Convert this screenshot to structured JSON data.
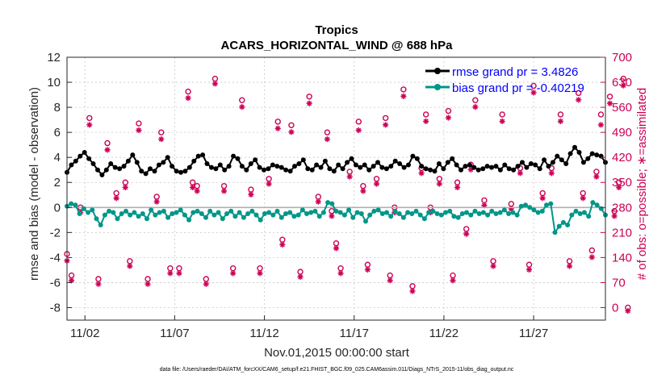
{
  "chart_data": {
    "type": "line",
    "title": "Tropics",
    "subtitle": "ACARS_HORIZONTAL_WIND @ 688 hPa",
    "xlabel": "Nov.01,2015 00:00:00 start",
    "ylabel": "rmse and bias (model - observation)",
    "y2label": "# of obs: o=possible; ∗=assimilated",
    "footnote": "data file: /Users/raeder/DAI/ATM_forcXX/CAM6_setup/f.e21.FHIST_BGC.f09_025.CAM6assim.011/Diags_NTrS_2015-11/obs_diag_output.nc",
    "xlim": [
      0,
      120
    ],
    "ylim": [
      -9,
      12
    ],
    "y2lim": [
      -35,
      700
    ],
    "yticks": [
      "12",
      "10",
      "8",
      "6",
      "4",
      "2",
      "0",
      "-2",
      "-4",
      "-6",
      "-8"
    ],
    "y2ticks": [
      "700",
      "630",
      "560",
      "490",
      "420",
      "350",
      "280",
      "210",
      "140",
      "70",
      "0"
    ],
    "xticks": [
      {
        "label": "11/02",
        "x": 4
      },
      {
        "label": "11/07",
        "x": 24
      },
      {
        "label": "11/12",
        "x": 44
      },
      {
        "label": "11/17",
        "x": 64
      },
      {
        "label": "11/22",
        "x": 84
      },
      {
        "label": "11/27",
        "x": 104
      }
    ],
    "legend_position": "top-right",
    "series": [
      {
        "name": "rmse grand pr = 3.4826",
        "color": "#000000",
        "values": [
          2.8,
          3.4,
          3.7,
          4.1,
          4.4,
          3.9,
          3.5,
          3.0,
          2.6,
          3.0,
          3.5,
          3.2,
          3.1,
          3.3,
          3.7,
          4.2,
          3.6,
          2.9,
          2.7,
          3.1,
          2.9,
          3.4,
          3.6,
          4.0,
          3.3,
          2.9,
          2.8,
          2.9,
          3.2,
          3.7,
          4.1,
          4.2,
          3.5,
          3.2,
          3.1,
          3.4,
          3.0,
          3.3,
          4.1,
          3.9,
          3.3,
          3.0,
          3.5,
          3.8,
          3.2,
          3.0,
          3.1,
          3.4,
          3.3,
          3.2,
          3.0,
          2.9,
          3.3,
          3.5,
          3.8,
          3.1,
          3.0,
          3.4,
          3.2,
          3.7,
          3.1,
          2.9,
          3.4,
          3.1,
          3.6,
          3.9,
          3.4,
          3.2,
          3.4,
          3.0,
          3.3,
          3.6,
          3.2,
          3.1,
          3.3,
          3.7,
          3.5,
          3.2,
          3.4,
          4.1,
          3.9,
          3.3,
          3.1,
          3.0,
          2.9,
          3.5,
          3.1,
          3.6,
          3.9,
          3.4,
          3.0,
          3.3,
          3.4,
          3.2,
          3.0,
          3.1,
          3.3,
          3.2,
          3.3,
          3.0,
          3.4,
          3.1,
          3.0,
          3.3,
          3.6,
          3.2,
          3.5,
          3.4,
          3.1,
          3.8,
          3.3,
          3.6,
          4.1,
          3.8,
          3.5,
          4.3,
          4.8,
          4.4,
          3.6,
          3.9,
          4.3,
          4.2,
          4.1,
          3.6
        ]
      },
      {
        "name": "bias grand pr = -0.40219",
        "color": "#009688",
        "values": [
          0.1,
          0.3,
          0.2,
          -0.5,
          -0.1,
          -0.4,
          -0.2,
          -0.9,
          -1.4,
          -0.6,
          -0.3,
          -0.4,
          -0.9,
          -0.5,
          -0.3,
          -0.6,
          -0.4,
          -0.7,
          -0.5,
          -0.9,
          -0.2,
          -0.6,
          -0.4,
          -0.3,
          -0.8,
          -0.5,
          -0.4,
          -0.2,
          -0.6,
          -1.0,
          -0.4,
          -0.3,
          -0.5,
          -0.8,
          -0.3,
          -0.6,
          -0.4,
          -0.9,
          -0.5,
          -0.3,
          -0.7,
          -0.4,
          -0.8,
          -0.5,
          -0.3,
          -0.6,
          -1.0,
          -0.5,
          -0.4,
          -0.6,
          -0.3,
          -0.8,
          -0.5,
          -0.4,
          -0.7,
          -0.6,
          -0.2,
          -0.5,
          -0.4,
          -0.3,
          -0.7,
          -0.4,
          0.4,
          0.3,
          -0.3,
          -0.4,
          -0.6,
          -0.2,
          -0.8,
          -0.4,
          -0.5,
          -1.1,
          -0.6,
          -0.3,
          -0.2,
          -0.5,
          -0.4,
          -0.7,
          -0.3,
          -0.5,
          -0.8,
          -0.4,
          -0.5,
          -0.3,
          -0.6,
          -0.9,
          -0.4,
          -0.3,
          -0.5,
          -0.6,
          -0.4,
          -0.3,
          -0.7,
          -0.8,
          -0.5,
          -0.4,
          -0.6,
          -0.3,
          -0.5,
          -0.4,
          -0.6,
          -0.3,
          -0.5,
          -0.4,
          -0.2,
          -0.5,
          -0.4,
          -0.6,
          0.1,
          0.2,
          0.0,
          -0.2,
          -0.4,
          -0.3,
          0.2,
          0.3,
          -2.0,
          -1.5,
          -1.2,
          -1.4,
          -0.6,
          -0.3,
          -0.5,
          -0.4,
          -0.7,
          0.4,
          0.2,
          -0.1,
          -0.6
        ]
      }
    ],
    "obs_counts": {
      "possible": [
        [
          0,
          150
        ],
        [
          1,
          90
        ],
        [
          3,
          280
        ],
        [
          5,
          530
        ],
        [
          7,
          80
        ],
        [
          9,
          460
        ],
        [
          11,
          320
        ],
        [
          13,
          350
        ],
        [
          14,
          130
        ],
        [
          16,
          515
        ],
        [
          18,
          80
        ],
        [
          20,
          310
        ],
        [
          21,
          490
        ],
        [
          23,
          110
        ],
        [
          25,
          110
        ],
        [
          27,
          604
        ],
        [
          28,
          350
        ],
        [
          29,
          340
        ],
        [
          31,
          80
        ],
        [
          33,
          640
        ],
        [
          35,
          340
        ],
        [
          37,
          110
        ],
        [
          39,
          580
        ],
        [
          41,
          330
        ],
        [
          43,
          110
        ],
        [
          45,
          360
        ],
        [
          47,
          520
        ],
        [
          48,
          190
        ],
        [
          50,
          510
        ],
        [
          52,
          100
        ],
        [
          54,
          590
        ],
        [
          56,
          310
        ],
        [
          58,
          490
        ],
        [
          59,
          270
        ],
        [
          60,
          180
        ],
        [
          61,
          110
        ],
        [
          63,
          380
        ],
        [
          65,
          520
        ],
        [
          66,
          340
        ],
        [
          67,
          120
        ],
        [
          69,
          360
        ],
        [
          71,
          530
        ],
        [
          72,
          90
        ],
        [
          73,
          280
        ],
        [
          75,
          610
        ],
        [
          77,
          60
        ],
        [
          79,
          390
        ],
        [
          80,
          540
        ],
        [
          81,
          280
        ],
        [
          83,
          360
        ],
        [
          85,
          550
        ],
        [
          86,
          90
        ],
        [
          87,
          350
        ],
        [
          89,
          220
        ],
        [
          90,
          400
        ],
        [
          91,
          580
        ],
        [
          93,
          300
        ],
        [
          95,
          130
        ],
        [
          97,
          540
        ],
        [
          99,
          290
        ],
        [
          101,
          390
        ],
        [
          103,
          120
        ],
        [
          104,
          620
        ],
        [
          106,
          320
        ],
        [
          108,
          390
        ],
        [
          110,
          540
        ],
        [
          112,
          130
        ],
        [
          114,
          600
        ],
        [
          115,
          320
        ],
        [
          117,
          160
        ],
        [
          118,
          380
        ],
        [
          119,
          540
        ],
        [
          121,
          590
        ],
        [
          122,
          270
        ],
        [
          123,
          350
        ],
        [
          124,
          640
        ],
        [
          125,
          0
        ]
      ],
      "assimilated": [
        [
          0,
          140
        ],
        [
          1,
          85
        ],
        [
          3,
          275
        ],
        [
          5,
          520
        ],
        [
          7,
          75
        ],
        [
          9,
          450
        ],
        [
          11,
          315
        ],
        [
          13,
          345
        ],
        [
          14,
          125
        ],
        [
          16,
          505
        ],
        [
          18,
          75
        ],
        [
          20,
          305
        ],
        [
          21,
          480
        ],
        [
          23,
          105
        ],
        [
          25,
          105
        ],
        [
          27,
          595
        ],
        [
          28,
          345
        ],
        [
          29,
          335
        ],
        [
          31,
          75
        ],
        [
          33,
          635
        ],
        [
          35,
          335
        ],
        [
          37,
          105
        ],
        [
          39,
          570
        ],
        [
          41,
          325
        ],
        [
          43,
          105
        ],
        [
          45,
          355
        ],
        [
          47,
          510
        ],
        [
          48,
          185
        ],
        [
          50,
          500
        ],
        [
          52,
          95
        ],
        [
          54,
          580
        ],
        [
          56,
          305
        ],
        [
          58,
          480
        ],
        [
          59,
          265
        ],
        [
          60,
          175
        ],
        [
          61,
          105
        ],
        [
          63,
          375
        ],
        [
          65,
          505
        ],
        [
          66,
          335
        ],
        [
          67,
          115
        ],
        [
          69,
          355
        ],
        [
          71,
          520
        ],
        [
          72,
          85
        ],
        [
          73,
          275
        ],
        [
          75,
          600
        ],
        [
          77,
          55
        ],
        [
          79,
          385
        ],
        [
          80,
          530
        ],
        [
          81,
          275
        ],
        [
          83,
          355
        ],
        [
          85,
          540
        ],
        [
          86,
          85
        ],
        [
          87,
          345
        ],
        [
          89,
          215
        ],
        [
          90,
          395
        ],
        [
          91,
          570
        ],
        [
          93,
          295
        ],
        [
          95,
          125
        ],
        [
          97,
          530
        ],
        [
          99,
          285
        ],
        [
          101,
          385
        ],
        [
          103,
          115
        ],
        [
          104,
          610
        ],
        [
          106,
          315
        ],
        [
          108,
          385
        ],
        [
          110,
          530
        ],
        [
          112,
          125
        ],
        [
          114,
          590
        ],
        [
          115,
          315
        ],
        [
          117,
          150
        ],
        [
          118,
          375
        ],
        [
          119,
          520
        ],
        [
          121,
          580
        ],
        [
          122,
          265
        ],
        [
          123,
          345
        ],
        [
          124,
          630
        ],
        [
          125,
          0
        ]
      ]
    }
  }
}
